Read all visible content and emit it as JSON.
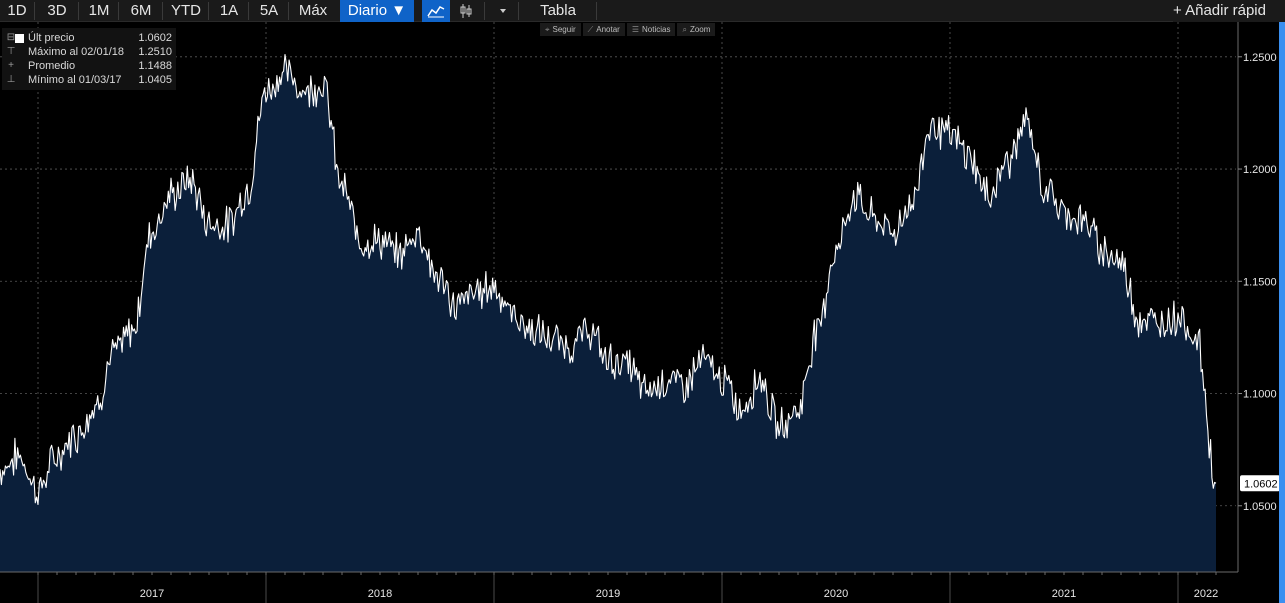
{
  "toolbar": {
    "periods": [
      "1D",
      "3D",
      "1M",
      "6M",
      "YTD",
      "1A",
      "5A",
      "Máx"
    ],
    "frequency_label": "Diario ▼",
    "table_label": "Tabla",
    "add_quick_label": "+ Añadir rápid",
    "icons": [
      "line-chart-icon",
      "candlestick-icon",
      "dropdown-caret-icon"
    ]
  },
  "minibar": {
    "items": [
      {
        "glyph": "⌖",
        "label": "Seguir"
      },
      {
        "glyph": "⟋",
        "label": "Anotar"
      },
      {
        "glyph": "☰",
        "label": "Noticias"
      },
      {
        "glyph": "⌕",
        "label": "Zoom"
      }
    ]
  },
  "legend": {
    "last": {
      "label": "Últ precio",
      "value": "1.0602"
    },
    "max": {
      "label": "Máximo al 02/01/18",
      "value": "1.2510"
    },
    "avg": {
      "label": "Promedio",
      "value": "1.1488"
    },
    "min": {
      "label": "Mínimo al 01/03/17",
      "value": "1.0405"
    }
  },
  "colors": {
    "line": "#ffffff",
    "area": "#0b1f3a",
    "grid": "#5a5a5a",
    "last_label_bg": "#ffffff",
    "accent": "#0f63c8",
    "right_edge": "#3a8ff0"
  },
  "chart_data": {
    "type": "area",
    "title": "",
    "xlabel": "",
    "ylabel": "",
    "ylim": [
      1.0205,
      1.2655
    ],
    "yticks": [
      "1.2500",
      "1.2000",
      "1.1500",
      "1.1000",
      "1.0500"
    ],
    "year_ticks": [
      "2017",
      "2018",
      "2019",
      "2020",
      "2021",
      "2022"
    ],
    "last_value": "1.0602",
    "grid": true,
    "x_start": "2016-11",
    "x_end": "2022-03",
    "series": [
      {
        "x": [
          "2016-11",
          "2016-12",
          "2017-01",
          "2017-02",
          "2017-03",
          "2017-04",
          "2017-05",
          "2017-06",
          "2017-07",
          "2017-08",
          "2017-09",
          "2017-10",
          "2017-11",
          "2017-12",
          "2018-01",
          "2018-02",
          "2018-03",
          "2018-04",
          "2018-05",
          "2018-06",
          "2018-07",
          "2018-08",
          "2018-09",
          "2018-10",
          "2018-11",
          "2018-12",
          "2019-01",
          "2019-02",
          "2019-03",
          "2019-04",
          "2019-05",
          "2019-06",
          "2019-07",
          "2019-08",
          "2019-09",
          "2019-10",
          "2019-11",
          "2019-12",
          "2020-01",
          "2020-02",
          "2020-03",
          "2020-04",
          "2020-05",
          "2020-06",
          "2020-07",
          "2020-08",
          "2020-09",
          "2020-10",
          "2020-11",
          "2020-12",
          "2021-01",
          "2021-02",
          "2021-03",
          "2021-04",
          "2021-05",
          "2021-06",
          "2021-07",
          "2021-08",
          "2021-09",
          "2021-10",
          "2021-11",
          "2021-12",
          "2022-01",
          "2022-02",
          "2022-03"
        ],
        "values": [
          1.066,
          1.072,
          1.057,
          1.072,
          1.082,
          1.094,
          1.118,
          1.128,
          1.173,
          1.188,
          1.195,
          1.176,
          1.175,
          1.19,
          1.235,
          1.243,
          1.235,
          1.238,
          1.192,
          1.168,
          1.168,
          1.162,
          1.172,
          1.152,
          1.139,
          1.145,
          1.148,
          1.135,
          1.128,
          1.124,
          1.121,
          1.128,
          1.115,
          1.113,
          1.101,
          1.106,
          1.104,
          1.115,
          1.106,
          1.093,
          1.107,
          1.085,
          1.093,
          1.128,
          1.164,
          1.188,
          1.178,
          1.172,
          1.185,
          1.22,
          1.215,
          1.206,
          1.188,
          1.203,
          1.22,
          1.191,
          1.181,
          1.177,
          1.165,
          1.158,
          1.133,
          1.131,
          1.135,
          1.124,
          1.06
        ]
      }
    ]
  }
}
